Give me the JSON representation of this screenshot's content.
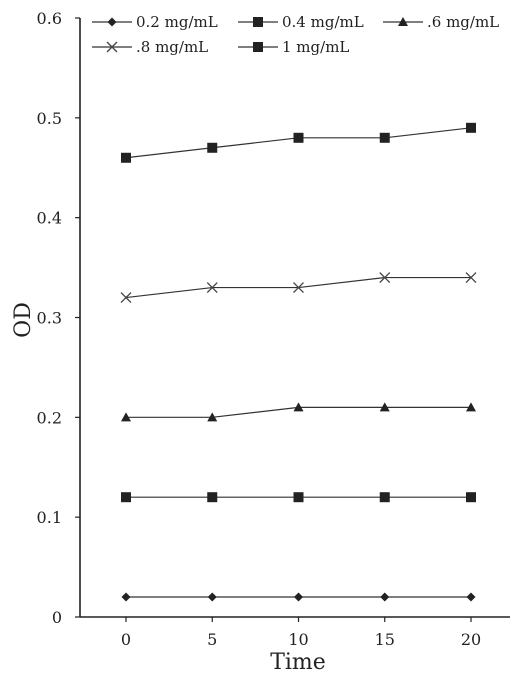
{
  "chart_data": {
    "type": "line",
    "title": "",
    "xlabel": "Time",
    "ylabel": "OD",
    "x": [
      0,
      5,
      10,
      15,
      20
    ],
    "x_tick_labels": [
      "0",
      "5",
      "10",
      "15",
      "20"
    ],
    "y_tick_labels": [
      "0",
      "0.1",
      "0.2",
      "0.3",
      "0.4",
      "0.5",
      "0.6"
    ],
    "ylim": [
      0,
      0.6
    ],
    "grid": false,
    "legend_position": "top",
    "series": [
      {
        "name": "0.2 mg/mL",
        "marker": "diamond",
        "values": [
          0.02,
          0.02,
          0.02,
          0.02,
          0.02
        ]
      },
      {
        "name": "0.4 mg/mL",
        "marker": "square",
        "values": [
          0.12,
          0.12,
          0.12,
          0.12,
          0.12
        ]
      },
      {
        "name": ".6 mg/mL",
        "marker": "triangle",
        "values": [
          0.2,
          0.2,
          0.21,
          0.21,
          0.21
        ]
      },
      {
        "name": ".8 mg/mL",
        "marker": "x",
        "values": [
          0.32,
          0.33,
          0.33,
          0.34,
          0.34
        ]
      },
      {
        "name": "1 mg/mL",
        "marker": "square",
        "values": [
          0.46,
          0.47,
          0.48,
          0.48,
          0.49
        ]
      }
    ]
  }
}
